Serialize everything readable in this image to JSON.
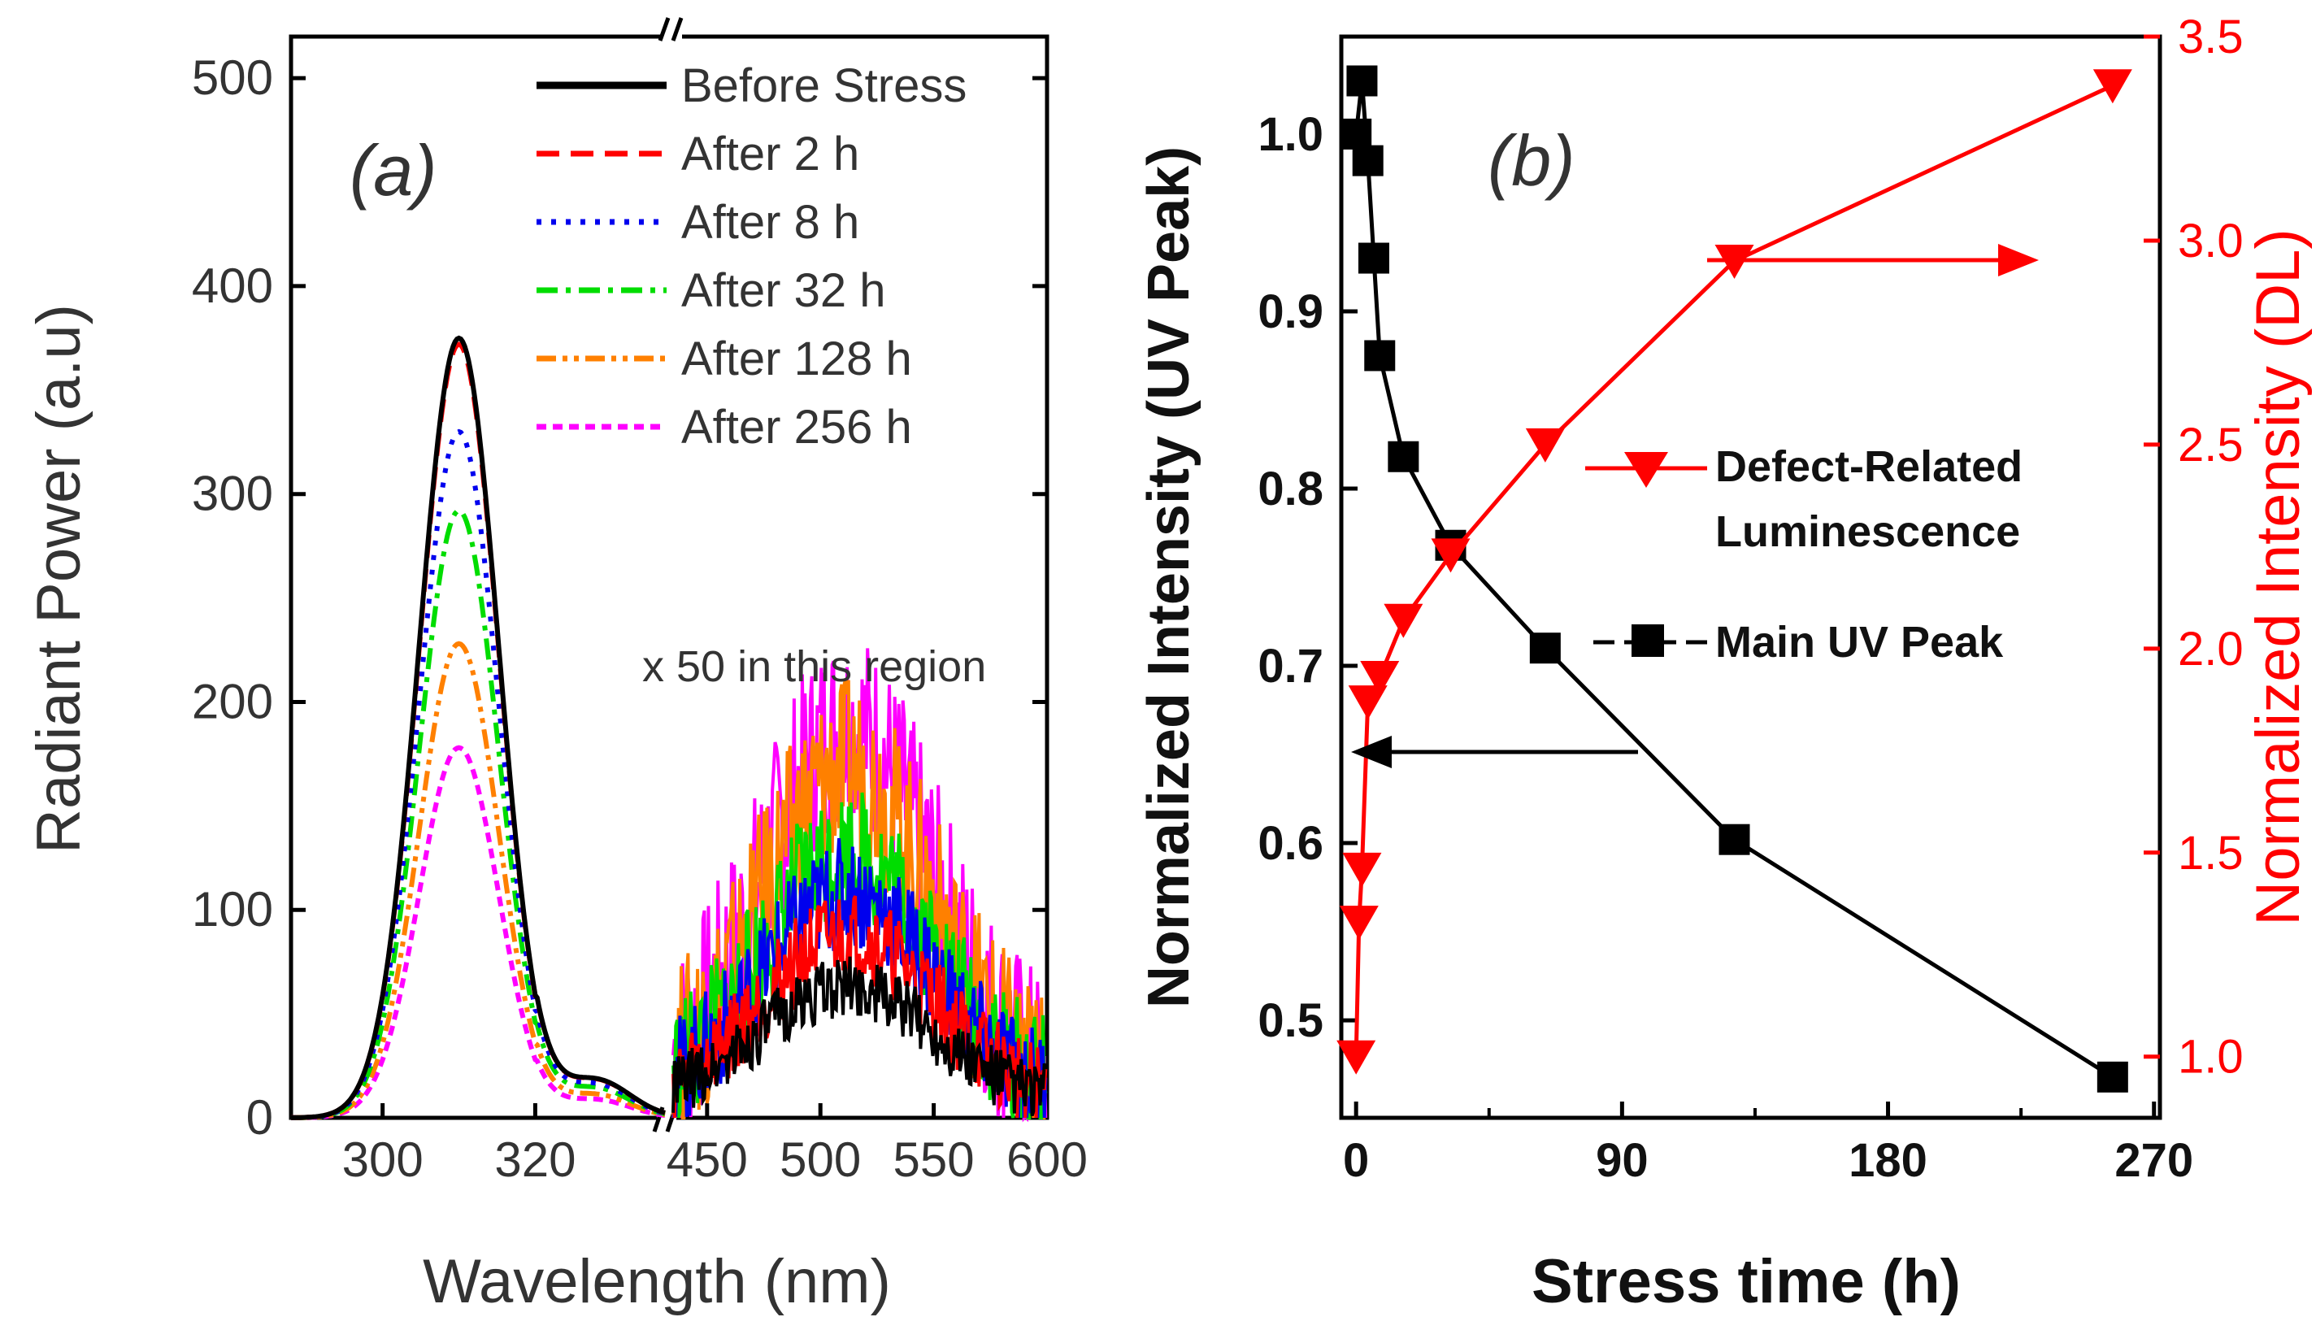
{
  "chart_data": [
    {
      "id": "a",
      "type": "line",
      "panel_label": "(a)",
      "xlabel": "Wavelength (nm)",
      "ylabel": "Radiant Power (a.u)",
      "ylim": [
        0,
        520
      ],
      "yticks": [
        "0",
        "100",
        "200",
        "300",
        "400",
        "500"
      ],
      "x_segments": [
        {
          "range": [
            288,
            337
          ],
          "ticks": [
            "300",
            "320"
          ]
        },
        {
          "range": [
            435,
            600
          ],
          "ticks": [
            "450",
            "500",
            "550",
            "600"
          ]
        }
      ],
      "annotation": "x 50 in this region",
      "series": [
        {
          "name": "Before Stress",
          "color": "#000000",
          "dash": "solid",
          "peak_uv": 375,
          "peak_dl": 55
        },
        {
          "name": "After 2 h",
          "color": "#ff0000",
          "dash": "dash",
          "peak_uv": 372,
          "peak_dl": 80
        },
        {
          "name": "After 8 h",
          "color": "#0000ee",
          "dash": "dot",
          "peak_uv": 330,
          "peak_dl": 100
        },
        {
          "name": "After 32 h",
          "color": "#00dd00",
          "dash": "dashdot",
          "peak_uv": 292,
          "peak_dl": 120
        },
        {
          "name": "After 128 h",
          "color": "#ff8000",
          "dash": "dashdotdot",
          "peak_uv": 228,
          "peak_dl": 160
        },
        {
          "name": "After 256 h",
          "color": "#ff00ff",
          "dash": "shortdash",
          "peak_uv": 178,
          "peak_dl": 180
        }
      ],
      "peak_center_uv": 310,
      "peak_center_dl": 512
    },
    {
      "id": "b",
      "type": "line",
      "panel_label": "(b)",
      "xlabel": "Stress time (h)",
      "ylabel_left": "Normalized Intensity (UV Peak)",
      "ylabel_right": "Normalized Intensity (DL)",
      "xlim": [
        -5,
        272
      ],
      "xticks": [
        "0",
        "90",
        "180",
        "270"
      ],
      "ylim_left": [
        0.445,
        1.055
      ],
      "yticks_left": [
        "0.5",
        "0.6",
        "0.7",
        "0.8",
        "0.9",
        "1.0"
      ],
      "ylim_right": [
        0.85,
        3.5
      ],
      "yticks_right": [
        "1.0",
        "1.5",
        "2.0",
        "2.5",
        "3.0",
        "3.5"
      ],
      "series": [
        {
          "name": "Main UV Peak",
          "axis": "left",
          "color": "#000000",
          "marker": "square",
          "x": [
            0,
            2,
            4,
            6,
            8,
            16,
            32,
            64,
            128,
            256
          ],
          "y": [
            1.0,
            1.03,
            0.985,
            0.93,
            0.875,
            0.818,
            0.768,
            0.71,
            0.602,
            0.468
          ]
        },
        {
          "name": "Defect-Related Luminescence",
          "axis": "right",
          "color": "#ff0000",
          "marker": "triangle-down",
          "x": [
            0,
            1,
            2,
            4,
            8,
            16,
            32,
            64,
            128,
            256
          ],
          "y": [
            1.0,
            1.33,
            1.46,
            1.87,
            1.93,
            2.07,
            2.23,
            2.5,
            2.95,
            3.38
          ]
        }
      ],
      "legend_entries": [
        "Defect-Related",
        "Luminescence",
        "Main UV Peak"
      ],
      "arrows": [
        {
          "series": "Main UV Peak",
          "points_to": "left axis"
        },
        {
          "series": "Defect-Related Luminescence",
          "points_to": "right axis"
        }
      ]
    }
  ]
}
